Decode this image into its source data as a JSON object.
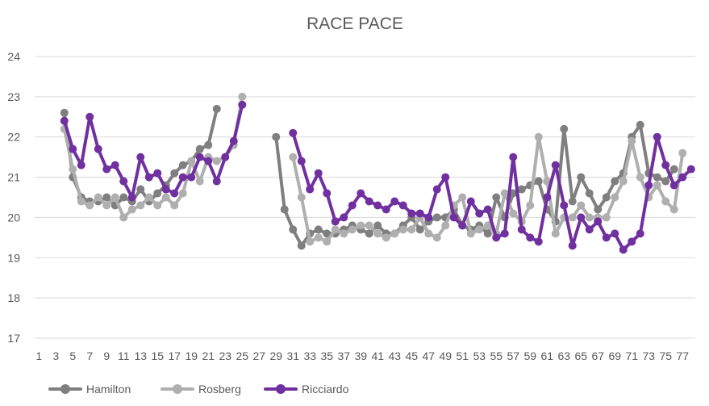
{
  "chart_data": {
    "type": "line",
    "title": "RACE PACE",
    "xlabel": "",
    "ylabel": "",
    "ylim": [
      17,
      24
    ],
    "yticks": [
      17,
      18,
      19,
      20,
      21,
      22,
      23,
      24
    ],
    "xticks": [
      1,
      3,
      5,
      7,
      9,
      11,
      13,
      15,
      17,
      19,
      21,
      23,
      25,
      27,
      29,
      31,
      33,
      35,
      37,
      39,
      41,
      43,
      45,
      47,
      49,
      51,
      53,
      55,
      57,
      59,
      61,
      63,
      65,
      67,
      69,
      71,
      73,
      75,
      77
    ],
    "xlim": [
      1,
      78
    ],
    "grid": "horizontal",
    "legend_position": "bottom-left",
    "series": [
      {
        "name": "Hamilton",
        "color": "#7f7f7f",
        "start": 4,
        "values": [
          22.6,
          21.0,
          20.5,
          20.4,
          20.4,
          20.5,
          20.3,
          20.5,
          20.4,
          20.7,
          20.4,
          20.6,
          20.8,
          21.1,
          21.3,
          21.4,
          21.7,
          21.8,
          22.7,
          null,
          null,
          null,
          null,
          null,
          null,
          22.0,
          20.2,
          19.7,
          19.3,
          19.6,
          19.7,
          19.6,
          19.6,
          19.7,
          19.8,
          19.7,
          19.6,
          19.8,
          19.6,
          19.6,
          19.8,
          20.0,
          19.7,
          19.9,
          20.0,
          20.0,
          20.2,
          19.8,
          19.7,
          19.8,
          19.6,
          20.5,
          20.0,
          20.6,
          20.7,
          20.8,
          20.9,
          20.2,
          19.9,
          22.2,
          20.4,
          21.0,
          20.6,
          20.2,
          20.5,
          20.9,
          21.1,
          22.0,
          22.3,
          21.1,
          21.0,
          20.9,
          21.2
        ]
      },
      {
        "name": "Rosberg",
        "color": "#afafaf",
        "start": 4,
        "values": [
          22.2,
          21.2,
          20.4,
          20.3,
          20.5,
          20.3,
          20.5,
          20.0,
          20.2,
          20.3,
          20.5,
          20.3,
          20.5,
          20.3,
          20.6,
          21.4,
          20.9,
          21.5,
          21.4,
          21.5,
          21.8,
          23.0,
          null,
          null,
          null,
          null,
          null,
          21.5,
          20.5,
          19.4,
          19.5,
          19.4,
          19.7,
          19.6,
          19.7,
          19.8,
          19.8,
          19.6,
          19.5,
          19.6,
          19.7,
          19.7,
          20.0,
          19.6,
          19.5,
          19.8,
          20.3,
          20.5,
          19.6,
          19.7,
          19.8,
          19.6,
          20.6,
          20.1,
          19.9,
          20.3,
          22.0,
          20.9,
          19.6,
          20.0,
          20.0,
          20.3,
          20.0,
          20.0,
          20.0,
          20.5,
          20.9,
          21.9,
          21.0,
          20.5,
          20.8,
          20.4,
          20.2,
          21.6
        ]
      },
      {
        "name": "Ricciardo",
        "color": "#7030a0",
        "start": 4,
        "values": [
          22.4,
          21.7,
          21.3,
          22.5,
          21.7,
          21.2,
          21.3,
          20.9,
          20.5,
          21.5,
          21.0,
          21.1,
          20.7,
          20.6,
          21.0,
          21.0,
          21.5,
          21.4,
          20.9,
          21.5,
          21.9,
          22.8,
          null,
          null,
          null,
          null,
          null,
          22.1,
          21.4,
          20.7,
          21.1,
          20.6,
          19.9,
          20.0,
          20.3,
          20.6,
          20.4,
          20.3,
          20.2,
          20.4,
          20.3,
          20.1,
          20.1,
          20.0,
          20.7,
          21.0,
          20.0,
          19.8,
          20.4,
          20.1,
          20.2,
          19.5,
          19.6,
          21.5,
          19.7,
          19.5,
          19.4,
          20.5,
          21.3,
          20.3,
          19.3,
          20.0,
          19.7,
          19.9,
          19.5,
          19.6,
          19.2,
          19.4,
          19.6,
          20.8,
          22.0,
          21.3,
          20.8,
          21.0,
          21.2
        ]
      }
    ]
  }
}
